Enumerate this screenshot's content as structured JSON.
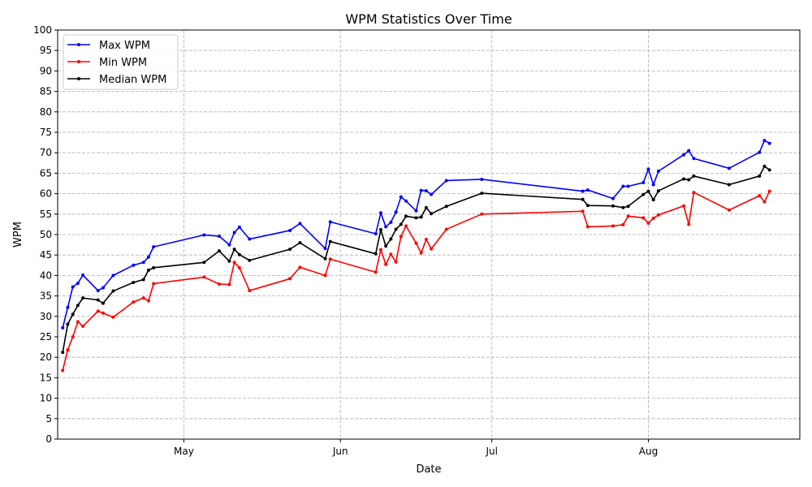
{
  "chart_data": {
    "type": "line",
    "title": "WPM Statistics Over Time",
    "xlabel": "Date",
    "ylabel": "WPM",
    "ylim": [
      0,
      100
    ],
    "yticks": [
      0,
      5,
      10,
      15,
      20,
      25,
      30,
      35,
      40,
      45,
      50,
      55,
      60,
      65,
      70,
      75,
      80,
      85,
      90,
      95,
      100
    ],
    "xlim": [
      "2024-04-06",
      "2024-08-31"
    ],
    "xticks": [
      {
        "date": "2024-05-01",
        "label": "May"
      },
      {
        "date": "2024-06-01",
        "label": "Jun"
      },
      {
        "date": "2024-07-01",
        "label": "Jul"
      },
      {
        "date": "2024-08-01",
        "label": "Aug"
      }
    ],
    "grid": true,
    "legend_position": "upper-left",
    "x": [
      "2024-04-13",
      "2024-04-14",
      "2024-04-15",
      "2024-04-16",
      "2024-04-17",
      "2024-04-24",
      "2024-04-25",
      "2024-04-27",
      "2024-05-01",
      "2024-05-02",
      "2024-05-03",
      "2024-05-04",
      "2024-05-05",
      "2024-05-08",
      "2024-05-11",
      "2024-05-13",
      "2024-05-15",
      "2024-05-16",
      "2024-05-17",
      "2024-05-20",
      "2024-05-27",
      "2024-05-29",
      "2024-06-03",
      "2024-06-05",
      "2024-06-15",
      "2024-06-16",
      "2024-06-17",
      "2024-06-18",
      "2024-06-19",
      "2024-06-20",
      "2024-06-21",
      "2024-06-22",
      "2024-06-23",
      "2024-06-24",
      "2024-06-25",
      "2024-06-26",
      "2024-06-27",
      "2024-06-30",
      "2024-07-06",
      "2024-07-12",
      "2024-07-13",
      "2024-07-14",
      "2024-07-15",
      "2024-07-16",
      "2024-07-17",
      "2024-07-18",
      "2024-07-19",
      "2024-07-20",
      "2024-07-21",
      "2024-08-01",
      "2024-08-02",
      "2024-08-03",
      "2024-08-04",
      "2024-08-05",
      "2024-08-06",
      "2024-08-07",
      "2024-08-08",
      "2024-08-09",
      "2024-08-15",
      "2024-08-16",
      "2024-08-17",
      "2024-08-18",
      "2024-08-20",
      "2024-08-28",
      "2024-08-29",
      "2024-08-30"
    ],
    "series": [
      {
        "name": "Max WPM",
        "color": "#0000ff",
        "points": [
          [
            "2024-04-07",
            27.2
          ],
          [
            "2024-04-08",
            32.2
          ],
          [
            "2024-04-09",
            37.2
          ],
          [
            "2024-04-10",
            38.1
          ],
          [
            "2024-04-11",
            40.1
          ],
          [
            "2024-04-14",
            36.3
          ],
          [
            "2024-04-15",
            37.0
          ],
          [
            "2024-04-17",
            40.0
          ],
          [
            "2024-04-21",
            42.5
          ],
          [
            "2024-04-23",
            43.2
          ],
          [
            "2024-04-24",
            44.5
          ],
          [
            "2024-04-25",
            47.0
          ],
          [
            "2024-05-05",
            49.9
          ],
          [
            "2024-05-08",
            49.6
          ],
          [
            "2024-05-10",
            47.5
          ],
          [
            "2024-05-11",
            50.5
          ],
          [
            "2024-05-12",
            51.8
          ],
          [
            "2024-05-14",
            48.9
          ],
          [
            "2024-05-22",
            51.0
          ],
          [
            "2024-05-24",
            52.7
          ],
          [
            "2024-05-29",
            46.6
          ],
          [
            "2024-05-30",
            53.1
          ],
          [
            "2024-06-08",
            50.2
          ],
          [
            "2024-06-09",
            55.3
          ],
          [
            "2024-06-10",
            51.9
          ],
          [
            "2024-06-11",
            53.0
          ],
          [
            "2024-06-12",
            55.5
          ],
          [
            "2024-06-13",
            59.2
          ],
          [
            "2024-06-14",
            58.2
          ],
          [
            "2024-06-16",
            55.8
          ],
          [
            "2024-06-17",
            60.8
          ],
          [
            "2024-06-18",
            60.7
          ],
          [
            "2024-06-19",
            59.8
          ],
          [
            "2024-06-22",
            63.2
          ],
          [
            "2024-06-29",
            63.5
          ],
          [
            "2024-07-19",
            60.6
          ],
          [
            "2024-07-20",
            60.9
          ],
          [
            "2024-07-25",
            58.8
          ],
          [
            "2024-07-27",
            61.8
          ],
          [
            "2024-07-28",
            61.8
          ],
          [
            "2024-07-31",
            62.7
          ],
          [
            "2024-08-01",
            66.0
          ],
          [
            "2024-08-02",
            62.2
          ],
          [
            "2024-08-03",
            65.5
          ],
          [
            "2024-08-08",
            69.5
          ],
          [
            "2024-08-09",
            70.5
          ],
          [
            "2024-08-10",
            68.6
          ],
          [
            "2024-08-17",
            66.2
          ],
          [
            "2024-08-23",
            70.1
          ],
          [
            "2024-08-24",
            73.0
          ],
          [
            "2024-08-25",
            72.3
          ]
        ]
      },
      {
        "name": "Min WPM",
        "color": "#ff0000",
        "points": [
          [
            "2024-04-07",
            16.8
          ],
          [
            "2024-04-08",
            21.8
          ],
          [
            "2024-04-09",
            25.0
          ],
          [
            "2024-04-10",
            28.7
          ],
          [
            "2024-04-11",
            27.6
          ],
          [
            "2024-04-14",
            31.3
          ],
          [
            "2024-04-15",
            30.8
          ],
          [
            "2024-04-17",
            29.8
          ],
          [
            "2024-04-21",
            33.5
          ],
          [
            "2024-04-23",
            34.5
          ],
          [
            "2024-04-24",
            33.8
          ],
          [
            "2024-04-25",
            38.0
          ],
          [
            "2024-05-05",
            39.6
          ],
          [
            "2024-05-08",
            37.9
          ],
          [
            "2024-05-10",
            37.8
          ],
          [
            "2024-05-11",
            43.2
          ],
          [
            "2024-05-12",
            41.9
          ],
          [
            "2024-05-14",
            36.3
          ],
          [
            "2024-05-22",
            39.2
          ],
          [
            "2024-05-24",
            42.0
          ],
          [
            "2024-05-29",
            40.0
          ],
          [
            "2024-05-30",
            44.0
          ],
          [
            "2024-06-08",
            40.8
          ],
          [
            "2024-06-09",
            46.3
          ],
          [
            "2024-06-10",
            42.7
          ],
          [
            "2024-06-11",
            45.2
          ],
          [
            "2024-06-12",
            43.3
          ],
          [
            "2024-06-13",
            49.5
          ],
          [
            "2024-06-14",
            52.1
          ],
          [
            "2024-06-16",
            47.9
          ],
          [
            "2024-06-17",
            45.5
          ],
          [
            "2024-06-18",
            48.8
          ],
          [
            "2024-06-19",
            46.5
          ],
          [
            "2024-06-22",
            51.3
          ],
          [
            "2024-06-29",
            55.0
          ],
          [
            "2024-07-19",
            55.7
          ],
          [
            "2024-07-20",
            51.9
          ],
          [
            "2024-07-25",
            52.1
          ],
          [
            "2024-07-27",
            52.4
          ],
          [
            "2024-07-28",
            54.5
          ],
          [
            "2024-07-31",
            54.1
          ],
          [
            "2024-08-01",
            52.8
          ],
          [
            "2024-08-02",
            54.0
          ],
          [
            "2024-08-03",
            54.8
          ],
          [
            "2024-08-08",
            57.0
          ],
          [
            "2024-08-09",
            52.5
          ],
          [
            "2024-08-10",
            60.3
          ],
          [
            "2024-08-17",
            56.0
          ],
          [
            "2024-08-23",
            59.5
          ],
          [
            "2024-08-24",
            58.0
          ],
          [
            "2024-08-25",
            60.6
          ]
        ]
      },
      {
        "name": "Median WPM",
        "color": "#000000",
        "points": [
          [
            "2024-04-07",
            21.2
          ],
          [
            "2024-04-08",
            28.1
          ],
          [
            "2024-04-09",
            30.5
          ],
          [
            "2024-04-10",
            32.7
          ],
          [
            "2024-04-11",
            34.5
          ],
          [
            "2024-04-14",
            34.0
          ],
          [
            "2024-04-15",
            33.2
          ],
          [
            "2024-04-17",
            36.2
          ],
          [
            "2024-04-21",
            38.3
          ],
          [
            "2024-04-23",
            39.0
          ],
          [
            "2024-04-24",
            41.3
          ],
          [
            "2024-04-25",
            41.9
          ],
          [
            "2024-05-05",
            43.2
          ],
          [
            "2024-05-08",
            46.0
          ],
          [
            "2024-05-10",
            43.5
          ],
          [
            "2024-05-11",
            46.4
          ],
          [
            "2024-05-12",
            45.1
          ],
          [
            "2024-05-14",
            43.7
          ],
          [
            "2024-05-22",
            46.4
          ],
          [
            "2024-05-24",
            48.0
          ],
          [
            "2024-05-29",
            44.1
          ],
          [
            "2024-05-30",
            48.3
          ],
          [
            "2024-06-08",
            45.3
          ],
          [
            "2024-06-09",
            51.2
          ],
          [
            "2024-06-10",
            47.2
          ],
          [
            "2024-06-11",
            48.9
          ],
          [
            "2024-06-12",
            51.3
          ],
          [
            "2024-06-13",
            52.5
          ],
          [
            "2024-06-14",
            54.5
          ],
          [
            "2024-06-16",
            54.1
          ],
          [
            "2024-06-17",
            54.3
          ],
          [
            "2024-06-18",
            56.6
          ],
          [
            "2024-06-19",
            55.1
          ],
          [
            "2024-06-22",
            56.9
          ],
          [
            "2024-06-29",
            60.1
          ],
          [
            "2024-07-19",
            58.6
          ],
          [
            "2024-07-20",
            57.1
          ],
          [
            "2024-07-25",
            57.0
          ],
          [
            "2024-07-27",
            56.6
          ],
          [
            "2024-07-28",
            56.9
          ],
          [
            "2024-07-31",
            59.8
          ],
          [
            "2024-08-01",
            60.6
          ],
          [
            "2024-08-02",
            58.5
          ],
          [
            "2024-08-03",
            60.7
          ],
          [
            "2024-08-08",
            63.6
          ],
          [
            "2024-08-09",
            63.4
          ],
          [
            "2024-08-10",
            64.3
          ],
          [
            "2024-08-17",
            62.2
          ],
          [
            "2024-08-23",
            64.3
          ],
          [
            "2024-08-24",
            66.7
          ],
          [
            "2024-08-25",
            65.8
          ]
        ]
      }
    ]
  }
}
